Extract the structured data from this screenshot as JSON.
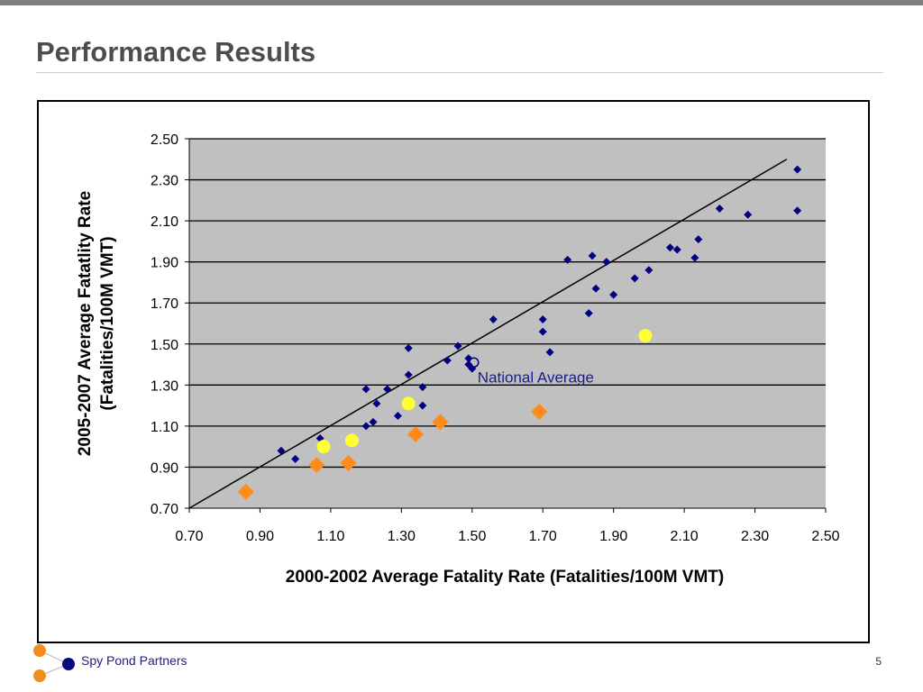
{
  "slide": {
    "title": "Performance Results",
    "page_number": "5"
  },
  "footer": {
    "company": "Spy Pond Partners",
    "logo_colors": {
      "orange": "#f28c1e",
      "navy": "#0a0a80"
    }
  },
  "colors": {
    "plot_background": "#c0c0c0",
    "other_states": "#000080",
    "highlight_yellow": "#ffff33",
    "highlight_orange": "#ff8c1a",
    "trend_line": "#000000"
  },
  "chart_data": {
    "type": "scatter",
    "xlabel": "2000-2002 Average Fatality Rate (Fatalities/100M VMT)",
    "ylabel_lines": [
      "2005-2007 Average Fatatlity Rate",
      "(Fatalities/100M VMT)"
    ],
    "xlim": [
      0.7,
      2.5
    ],
    "ylim": [
      0.7,
      2.5
    ],
    "x_ticks": [
      "0.70",
      "0.90",
      "1.10",
      "1.30",
      "1.50",
      "1.70",
      "1.90",
      "2.10",
      "2.30",
      "2.50"
    ],
    "y_ticks": [
      "0.70",
      "0.90",
      "1.10",
      "1.30",
      "1.50",
      "1.70",
      "1.90",
      "2.10",
      "2.30",
      "2.50"
    ],
    "grid": "horizontal",
    "reference_line": {
      "x": [
        0.7,
        2.39
      ],
      "y": [
        0.7,
        2.4
      ]
    },
    "series": [
      {
        "marker": "small-diamond",
        "color": "#000080",
        "points": [
          [
            0.96,
            0.98
          ],
          [
            1.0,
            0.94
          ],
          [
            1.07,
            1.04
          ],
          [
            1.2,
            1.28
          ],
          [
            1.2,
            1.1
          ],
          [
            1.22,
            1.12
          ],
          [
            1.23,
            1.21
          ],
          [
            1.26,
            1.28
          ],
          [
            1.29,
            1.15
          ],
          [
            1.32,
            1.48
          ],
          [
            1.32,
            1.35
          ],
          [
            1.36,
            1.29
          ],
          [
            1.36,
            1.2
          ],
          [
            1.43,
            1.42
          ],
          [
            1.46,
            1.49
          ],
          [
            1.49,
            1.4
          ],
          [
            1.5,
            1.38
          ],
          [
            1.49,
            1.43
          ],
          [
            1.56,
            1.62
          ],
          [
            1.7,
            1.62
          ],
          [
            1.7,
            1.56
          ],
          [
            1.72,
            1.46
          ],
          [
            1.77,
            1.91
          ],
          [
            1.83,
            1.65
          ],
          [
            1.84,
            1.93
          ],
          [
            1.85,
            1.77
          ],
          [
            1.88,
            1.9
          ],
          [
            1.9,
            1.74
          ],
          [
            1.96,
            1.82
          ],
          [
            2.0,
            1.86
          ],
          [
            2.06,
            1.97
          ],
          [
            2.08,
            1.96
          ],
          [
            2.13,
            1.92
          ],
          [
            2.14,
            2.01
          ],
          [
            2.2,
            2.16
          ],
          [
            2.28,
            2.13
          ],
          [
            2.42,
            2.35
          ],
          [
            2.42,
            2.15
          ]
        ]
      },
      {
        "marker": "circle",
        "color": "#ffff33",
        "points": [
          [
            1.08,
            1.0
          ],
          [
            1.16,
            1.03
          ],
          [
            1.32,
            1.21
          ],
          [
            1.99,
            1.54
          ]
        ]
      },
      {
        "marker": "large-diamond",
        "color": "#ff8c1a",
        "points": [
          [
            0.86,
            0.78
          ],
          [
            1.06,
            0.91
          ],
          [
            1.15,
            0.92
          ],
          [
            1.34,
            1.06
          ],
          [
            1.41,
            1.12
          ],
          [
            1.69,
            1.17
          ]
        ]
      }
    ],
    "annotations": [
      {
        "text": "National Average",
        "x": 1.5,
        "y": 1.41
      }
    ]
  }
}
